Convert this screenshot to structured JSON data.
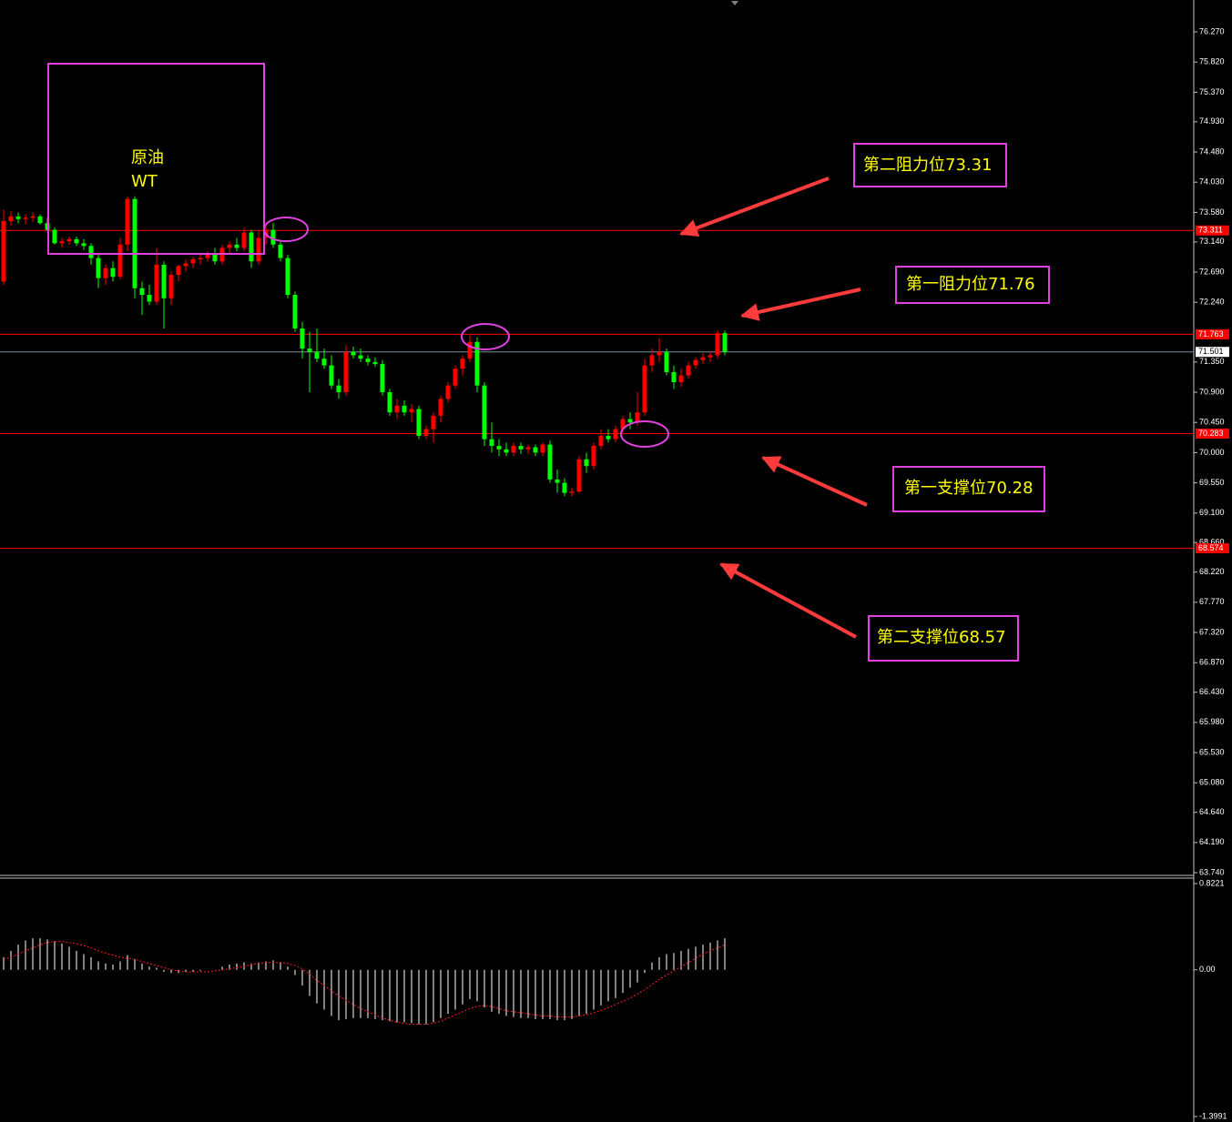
{
  "chart_data": {
    "type": "candlestick",
    "up_color": "#ff0000",
    "down_color": "#00ff00",
    "ylim": [
      63.7,
      76.745
    ],
    "yticks": [
      {
        "value": 76.27,
        "label": "76.270"
      },
      {
        "value": 75.82,
        "label": "75.820"
      },
      {
        "value": 75.37,
        "label": "75.370"
      },
      {
        "value": 74.93,
        "label": "74.930"
      },
      {
        "value": 74.48,
        "label": "74.480"
      },
      {
        "value": 74.03,
        "label": "74.030"
      },
      {
        "value": 73.58,
        "label": "73.580"
      },
      {
        "value": 73.14,
        "label": "73.140"
      },
      {
        "value": 72.69,
        "label": "72.690"
      },
      {
        "value": 72.24,
        "label": "72.240"
      },
      {
        "value": 71.35,
        "label": "71.350"
      },
      {
        "value": 70.9,
        "label": "70.900"
      },
      {
        "value": 70.45,
        "label": "70.450"
      },
      {
        "value": 70.0,
        "label": "70.000"
      },
      {
        "value": 69.55,
        "label": "69.550"
      },
      {
        "value": 69.1,
        "label": "69.100"
      },
      {
        "value": 68.66,
        "label": "68.660"
      },
      {
        "value": 68.22,
        "label": "68.220"
      },
      {
        "value": 67.77,
        "label": "67.770"
      },
      {
        "value": 67.32,
        "label": "67.320"
      },
      {
        "value": 66.87,
        "label": "66.870"
      },
      {
        "value": 66.43,
        "label": "66.430"
      },
      {
        "value": 65.98,
        "label": "65.980"
      },
      {
        "value": 65.53,
        "label": "65.530"
      },
      {
        "value": 65.08,
        "label": "65.080"
      },
      {
        "value": 64.64,
        "label": "64.640"
      },
      {
        "value": 64.19,
        "label": "64.190"
      },
      {
        "value": 63.74,
        "label": "63.740"
      }
    ],
    "levels": [
      {
        "value": 73.311,
        "label": "73.311",
        "color": "#ff0000"
      },
      {
        "value": 71.763,
        "label": "71.763",
        "color": "#ff0000"
      },
      {
        "value": 70.283,
        "label": "70.283",
        "color": "#ff0000"
      },
      {
        "value": 68.574,
        "label": "68.574",
        "color": "#ff0000"
      }
    ],
    "current_price": {
      "value": 71.501,
      "label": "71.501",
      "color": "#8090a0"
    },
    "candles": [
      [
        72.55,
        73.62,
        72.5,
        73.45
      ],
      [
        73.45,
        73.6,
        73.38,
        73.52
      ],
      [
        73.52,
        73.58,
        73.42,
        73.48
      ],
      [
        73.48,
        73.55,
        73.4,
        73.5
      ],
      [
        73.5,
        73.58,
        73.44,
        73.52
      ],
      [
        73.52,
        73.55,
        73.4,
        73.42
      ],
      [
        73.42,
        73.5,
        73.3,
        73.32
      ],
      [
        73.32,
        73.36,
        73.1,
        73.12
      ],
      [
        73.12,
        73.2,
        73.05,
        73.15
      ],
      [
        73.15,
        73.22,
        73.1,
        73.18
      ],
      [
        73.18,
        73.22,
        73.08,
        73.12
      ],
      [
        73.12,
        73.18,
        73.02,
        73.08
      ],
      [
        73.08,
        73.12,
        72.8,
        72.9
      ],
      [
        72.9,
        72.98,
        72.45,
        72.6
      ],
      [
        72.6,
        72.8,
        72.5,
        72.75
      ],
      [
        72.75,
        72.85,
        72.55,
        72.62
      ],
      [
        72.62,
        73.2,
        72.58,
        73.1
      ],
      [
        73.1,
        73.82,
        73.0,
        73.78
      ],
      [
        73.78,
        73.82,
        72.3,
        72.45
      ],
      [
        72.45,
        72.55,
        72.05,
        72.35
      ],
      [
        72.35,
        72.5,
        72.2,
        72.25
      ],
      [
        72.25,
        73.05,
        72.2,
        72.8
      ],
      [
        72.8,
        72.85,
        71.85,
        72.3
      ],
      [
        72.3,
        72.7,
        72.2,
        72.65
      ],
      [
        72.65,
        72.8,
        72.55,
        72.78
      ],
      [
        72.78,
        72.88,
        72.7,
        72.82
      ],
      [
        72.82,
        72.92,
        72.75,
        72.88
      ],
      [
        72.88,
        72.95,
        72.8,
        72.9
      ],
      [
        72.9,
        73.0,
        72.85,
        72.95
      ],
      [
        72.95,
        73.05,
        72.8,
        72.85
      ],
      [
        72.85,
        73.1,
        72.8,
        73.05
      ],
      [
        73.05,
        73.15,
        72.98,
        73.1
      ],
      [
        73.1,
        73.2,
        73.0,
        73.05
      ],
      [
        73.05,
        73.35,
        73.0,
        73.28
      ],
      [
        73.28,
        73.32,
        72.75,
        72.85
      ],
      [
        72.85,
        73.3,
        72.8,
        73.2
      ],
      [
        73.2,
        73.4,
        73.1,
        73.32
      ],
      [
        73.32,
        73.42,
        73.05,
        73.1
      ],
      [
        73.1,
        73.15,
        72.85,
        72.9
      ],
      [
        72.9,
        72.95,
        72.3,
        72.35
      ],
      [
        72.35,
        72.4,
        71.8,
        71.85
      ],
      [
        71.85,
        71.95,
        71.4,
        71.55
      ],
      [
        71.55,
        71.8,
        70.9,
        71.5
      ],
      [
        71.5,
        71.85,
        71.35,
        71.4
      ],
      [
        71.4,
        71.55,
        71.25,
        71.3
      ],
      [
        71.3,
        71.45,
        70.95,
        71.0
      ],
      [
        71.0,
        71.1,
        70.8,
        70.9
      ],
      [
        70.9,
        71.6,
        70.85,
        71.5
      ],
      [
        71.5,
        71.58,
        71.4,
        71.45
      ],
      [
        71.45,
        71.55,
        71.35,
        71.4
      ],
      [
        71.4,
        71.45,
        71.3,
        71.35
      ],
      [
        71.35,
        71.42,
        71.28,
        71.32
      ],
      [
        71.32,
        71.38,
        70.85,
        70.9
      ],
      [
        70.9,
        70.95,
        70.55,
        70.6
      ],
      [
        70.6,
        70.8,
        70.5,
        70.7
      ],
      [
        70.7,
        70.78,
        70.55,
        70.6
      ],
      [
        70.6,
        70.72,
        70.45,
        70.65
      ],
      [
        70.65,
        70.7,
        70.2,
        70.25
      ],
      [
        70.25,
        70.4,
        70.2,
        70.35
      ],
      [
        70.35,
        70.6,
        70.15,
        70.55
      ],
      [
        70.55,
        70.85,
        70.45,
        70.8
      ],
      [
        70.8,
        71.05,
        70.75,
        71.0
      ],
      [
        71.0,
        71.3,
        70.95,
        71.25
      ],
      [
        71.25,
        71.45,
        71.15,
        71.4
      ],
      [
        71.4,
        71.75,
        71.35,
        71.65
      ],
      [
        71.65,
        71.72,
        70.9,
        71.0
      ],
      [
        71.0,
        71.05,
        70.1,
        70.2
      ],
      [
        70.2,
        70.45,
        70.0,
        70.1
      ],
      [
        70.1,
        70.2,
        69.95,
        70.05
      ],
      [
        70.05,
        70.15,
        69.95,
        70.0
      ],
      [
        70.0,
        70.15,
        69.95,
        70.1
      ],
      [
        70.1,
        70.15,
        69.98,
        70.05
      ],
      [
        70.05,
        70.12,
        69.98,
        70.08
      ],
      [
        70.08,
        70.12,
        69.95,
        70.0
      ],
      [
        70.0,
        70.15,
        69.95,
        70.12
      ],
      [
        70.12,
        70.18,
        69.55,
        69.6
      ],
      [
        69.6,
        69.75,
        69.4,
        69.55
      ],
      [
        69.55,
        69.62,
        69.35,
        69.4
      ],
      [
        69.4,
        69.48,
        69.35,
        69.42
      ],
      [
        69.42,
        69.95,
        69.4,
        69.9
      ],
      [
        69.9,
        70.0,
        69.7,
        69.8
      ],
      [
        69.8,
        70.15,
        69.75,
        70.1
      ],
      [
        70.1,
        70.35,
        70.05,
        70.25
      ],
      [
        70.25,
        70.35,
        70.15,
        70.2
      ],
      [
        70.2,
        70.4,
        70.15,
        70.35
      ],
      [
        70.35,
        70.55,
        70.3,
        70.5
      ],
      [
        70.5,
        70.6,
        70.35,
        70.45
      ],
      [
        70.45,
        70.9,
        70.4,
        70.6
      ],
      [
        70.6,
        71.4,
        70.55,
        71.3
      ],
      [
        71.3,
        71.55,
        71.2,
        71.45
      ],
      [
        71.45,
        71.7,
        71.35,
        71.5
      ],
      [
        71.5,
        71.55,
        71.15,
        71.2
      ],
      [
        71.2,
        71.3,
        70.95,
        71.05
      ],
      [
        71.05,
        71.25,
        70.98,
        71.15
      ],
      [
        71.15,
        71.35,
        71.1,
        71.3
      ],
      [
        71.3,
        71.42,
        71.25,
        71.38
      ],
      [
        71.38,
        71.48,
        71.32,
        71.42
      ],
      [
        71.42,
        71.5,
        71.35,
        71.45
      ],
      [
        71.45,
        71.82,
        71.4,
        71.78
      ],
      [
        71.78,
        71.82,
        71.45,
        71.5
      ]
    ],
    "annotations": [
      "原油",
      "WT",
      "第二阻力位73.31",
      "第一阻力位71.76",
      "第一支撑位70.28",
      "第二支撑位68.57"
    ],
    "macd": {
      "ylim": [
        -1.4512,
        0.8655
      ],
      "yticks": [
        0.8221,
        {
          "value": 0,
          "label": "0.00"
        },
        -1.3991
      ],
      "histogram_color": "#ffffff",
      "signal_color": "#ff2020",
      "histogram": [
        0.12,
        0.18,
        0.24,
        0.28,
        0.3,
        0.3,
        0.29,
        0.27,
        0.25,
        0.22,
        0.18,
        0.15,
        0.12,
        0.08,
        0.06,
        0.05,
        0.08,
        0.14,
        0.1,
        0.06,
        0.03,
        0.02,
        -0.02,
        -0.03,
        -0.03,
        -0.02,
        -0.02,
        -0.01,
        0.0,
        0.0,
        0.03,
        0.05,
        0.06,
        0.07,
        0.06,
        0.07,
        0.08,
        0.09,
        0.07,
        0.03,
        -0.05,
        -0.15,
        -0.25,
        -0.32,
        -0.38,
        -0.44,
        -0.48,
        -0.47,
        -0.46,
        -0.46,
        -0.46,
        -0.47,
        -0.48,
        -0.49,
        -0.5,
        -0.5,
        -0.51,
        -0.52,
        -0.52,
        -0.5,
        -0.46,
        -0.42,
        -0.38,
        -0.33,
        -0.28,
        -0.3,
        -0.36,
        -0.4,
        -0.42,
        -0.44,
        -0.45,
        -0.46,
        -0.46,
        -0.47,
        -0.47,
        -0.47,
        -0.48,
        -0.48,
        -0.47,
        -0.44,
        -0.42,
        -0.38,
        -0.34,
        -0.3,
        -0.27,
        -0.22,
        -0.17,
        -0.12,
        -0.03,
        0.07,
        0.12,
        0.15,
        0.16,
        0.18,
        0.2,
        0.22,
        0.24,
        0.26,
        0.28,
        0.3
      ],
      "signal": [
        0.1,
        0.12,
        0.15,
        0.18,
        0.21,
        0.24,
        0.26,
        0.27,
        0.27,
        0.26,
        0.25,
        0.23,
        0.21,
        0.18,
        0.16,
        0.14,
        0.12,
        0.11,
        0.1,
        0.08,
        0.06,
        0.04,
        0.02,
        0.0,
        -0.01,
        -0.02,
        -0.02,
        -0.02,
        -0.02,
        -0.01,
        0.0,
        0.01,
        0.02,
        0.03,
        0.05,
        0.06,
        0.07,
        0.07,
        0.07,
        0.06,
        0.04,
        0.01,
        -0.04,
        -0.1,
        -0.15,
        -0.2,
        -0.25,
        -0.29,
        -0.33,
        -0.37,
        -0.4,
        -0.43,
        -0.46,
        -0.48,
        -0.5,
        -0.51,
        -0.52,
        -0.52,
        -0.52,
        -0.51,
        -0.49,
        -0.46,
        -0.43,
        -0.4,
        -0.37,
        -0.35,
        -0.34,
        -0.35,
        -0.37,
        -0.39,
        -0.4,
        -0.41,
        -0.42,
        -0.43,
        -0.44,
        -0.44,
        -0.45,
        -0.45,
        -0.45,
        -0.44,
        -0.43,
        -0.41,
        -0.39,
        -0.36,
        -0.33,
        -0.3,
        -0.27,
        -0.23,
        -0.19,
        -0.14,
        -0.09,
        -0.05,
        -0.01,
        0.03,
        0.07,
        0.11,
        0.15,
        0.18,
        0.21,
        0.24
      ]
    }
  }
}
